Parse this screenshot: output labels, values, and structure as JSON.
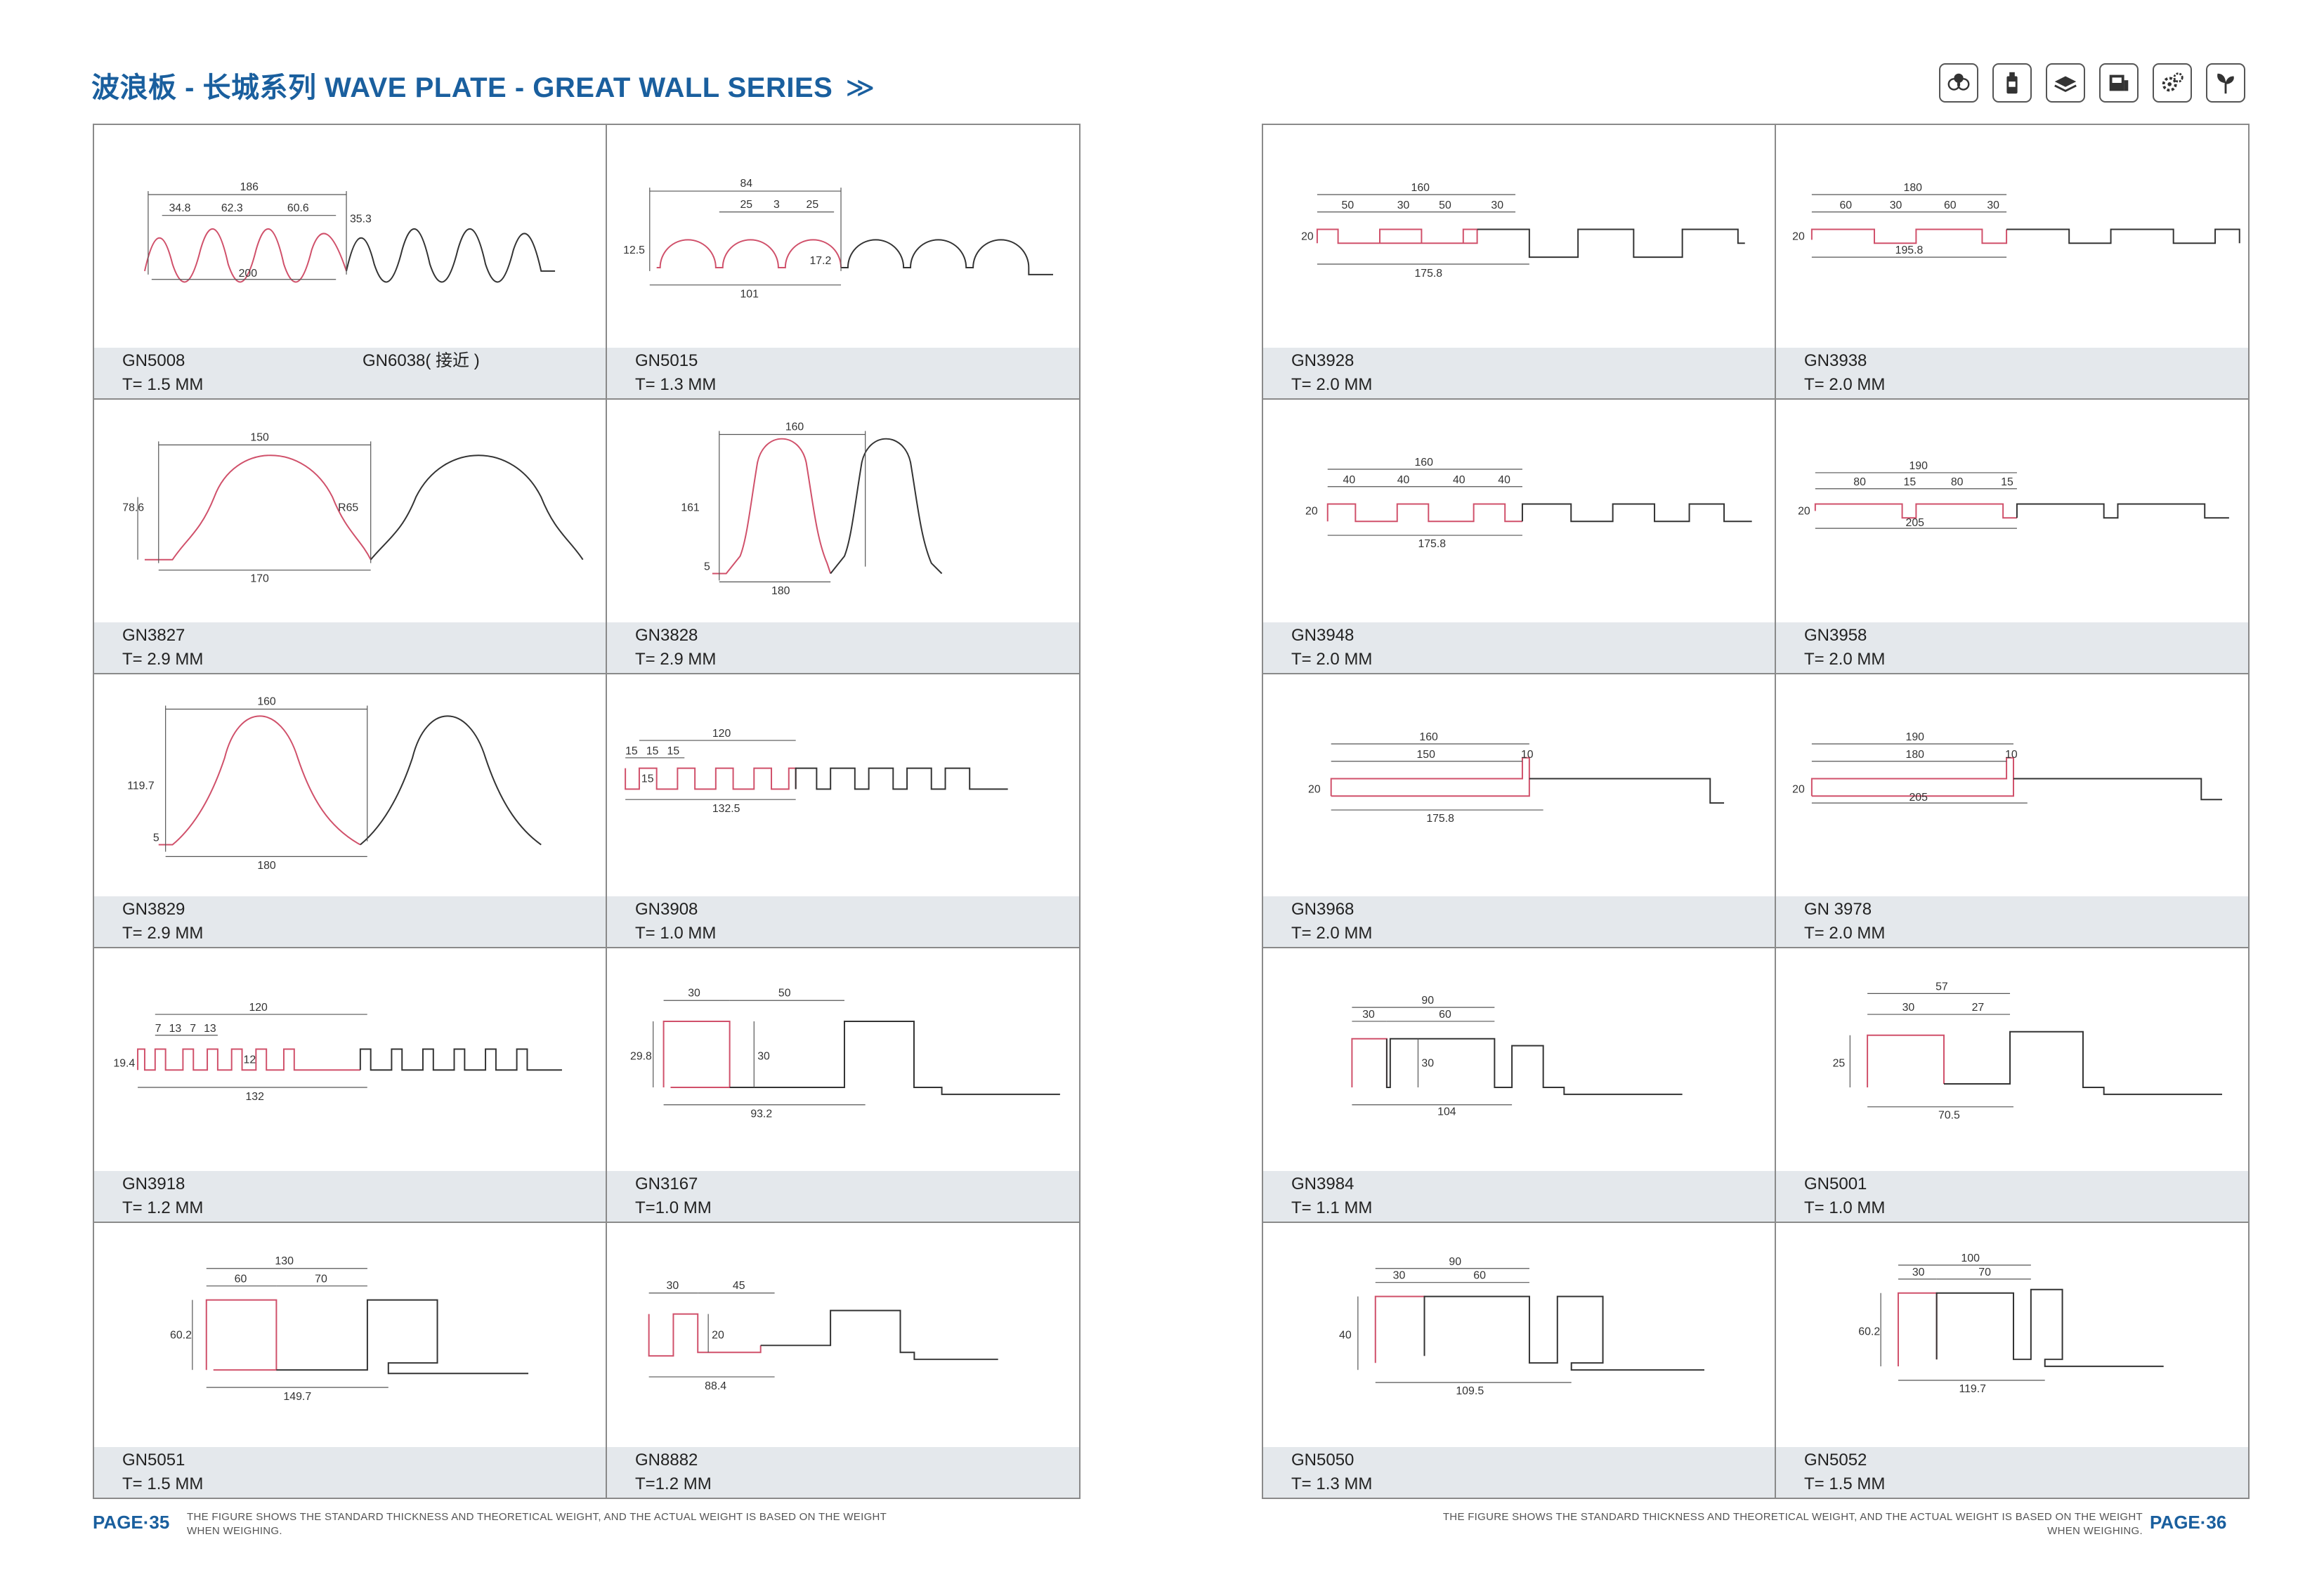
{
  "header": {
    "title": "波浪板 - 长城系列 WAVE PLATE - GREAT WALL SERIES",
    "chevron": "≫",
    "icons": [
      "cells-icon",
      "bottle-icon",
      "board-stack-icon",
      "machine-icon",
      "gears-icon",
      "plant-icon"
    ]
  },
  "left_page": {
    "cells": [
      {
        "code": "GN5008",
        "thickness": "T= 1.5 MM",
        "extra": "GN6038( 接近 )",
        "dims": [
          "186",
          "34.8",
          "62.3",
          "60.6",
          "35.3",
          "200"
        ]
      },
      {
        "code": "GN5015",
        "thickness": "T= 1.3 MM",
        "dims": [
          "84",
          "25",
          "3",
          "25",
          "12.5",
          "17.2",
          "101"
        ]
      },
      {
        "code": "GN3827",
        "thickness": "T=  2.9 MM",
        "dims": [
          "150",
          "78.6",
          "R65",
          "170"
        ]
      },
      {
        "code": "GN3828",
        "thickness": "T=  2.9 MM",
        "dims": [
          "160",
          "161",
          "5",
          "180"
        ]
      },
      {
        "code": "GN3829",
        "thickness": "T=  2.9 MM",
        "dims": [
          "160",
          "119.7",
          "5",
          "180"
        ]
      },
      {
        "code": "GN3908",
        "thickness": "T= 1.0 MM",
        "dims": [
          "120",
          "15",
          "15",
          "15",
          "15",
          "132.5"
        ]
      },
      {
        "code": "GN3918",
        "thickness": "T= 1.2 MM",
        "dims": [
          "120",
          "7",
          "13",
          "7",
          "13",
          "19.4",
          "12",
          "132"
        ]
      },
      {
        "code": "GN3167",
        "thickness": "T=1.0 MM",
        "dims": [
          "30",
          "50",
          "29.8",
          "30",
          "93.2"
        ]
      },
      {
        "code": "GN5051",
        "thickness": "T= 1.5 MM",
        "dims": [
          "130",
          "60",
          "70",
          "60.2",
          "149.7"
        ]
      },
      {
        "code": "GN8882",
        "thickness": "T=1.2 MM",
        "dims": [
          "30",
          "45",
          "20",
          "88.4"
        ]
      }
    ],
    "page": "PAGE·35",
    "note": "THE FIGURE SHOWS THE STANDARD THICKNESS AND THEORETICAL WEIGHT, AND THE ACTUAL WEIGHT IS BASED ON THE WEIGHT WHEN WEIGHING."
  },
  "right_page": {
    "cells": [
      {
        "code": "GN3928",
        "thickness": "T= 2.0 MM",
        "dims": [
          "160",
          "50",
          "30",
          "50",
          "30",
          "20",
          "175.8"
        ]
      },
      {
        "code": "GN3938",
        "thickness": "T= 2.0 MM",
        "dims": [
          "180",
          "60",
          "30",
          "60",
          "30",
          "20",
          "195.8"
        ]
      },
      {
        "code": "GN3948",
        "thickness": "T= 2.0 MM",
        "dims": [
          "160",
          "40",
          "40",
          "40",
          "40",
          "20",
          "175.8"
        ]
      },
      {
        "code": "GN3958",
        "thickness": "T= 2.0 MM",
        "dims": [
          "190",
          "80",
          "15",
          "80",
          "15",
          "20",
          "205"
        ]
      },
      {
        "code": "GN3968",
        "thickness": "T= 2.0 MM",
        "dims": [
          "160",
          "150",
          "10",
          "20",
          "175.8"
        ]
      },
      {
        "code": "GN 3978",
        "thickness": "T= 2.0 MM",
        "dims": [
          "190",
          "180",
          "10",
          "20",
          "205"
        ]
      },
      {
        "code": "GN3984",
        "thickness": "T=  1.1 MM",
        "dims": [
          "90",
          "30",
          "60",
          "30",
          "104"
        ]
      },
      {
        "code": "GN5001",
        "thickness": "T= 1.0 MM",
        "dims": [
          "57",
          "30",
          "27",
          "25",
          "70.5"
        ]
      },
      {
        "code": "GN5050",
        "thickness": "T= 1.3 MM",
        "dims": [
          "90",
          "30",
          "60",
          "40",
          "109.5"
        ]
      },
      {
        "code": "GN5052",
        "thickness": "T= 1.5 MM",
        "dims": [
          "100",
          "30",
          "70",
          "60.2",
          "119.7"
        ]
      }
    ],
    "page": "PAGE·36",
    "note": "THE FIGURE SHOWS THE STANDARD THICKNESS AND THEORETICAL WEIGHT, AND THE ACTUAL WEIGHT IS BASED ON THE WEIGHT WHEN WEIGHING."
  }
}
